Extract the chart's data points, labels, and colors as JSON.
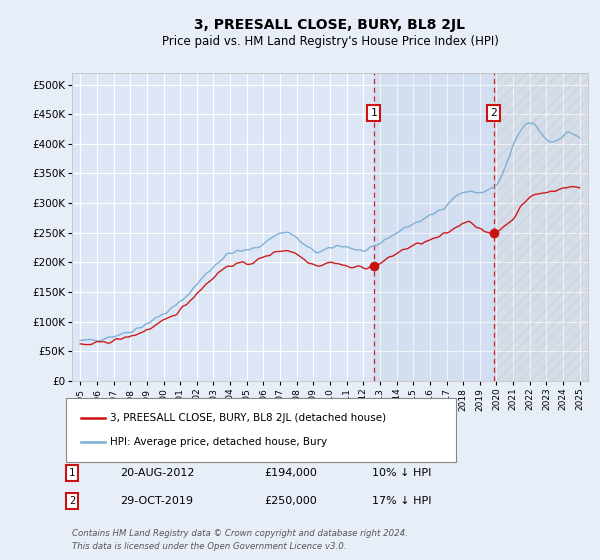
{
  "title": "3, PREESALL CLOSE, BURY, BL8 2JL",
  "subtitle": "Price paid vs. HM Land Registry's House Price Index (HPI)",
  "bg_color": "#e8eef8",
  "plot_bg_color": "#dde6f5",
  "grid_color": "#ffffff",
  "hpi_color": "#7aadd4",
  "price_color": "#cc1111",
  "marker1_date_x": 2012.63,
  "marker2_date_x": 2019.83,
  "marker1_price": 194000,
  "marker2_price": 250000,
  "marker1_label": "1",
  "marker2_label": "2",
  "marker1_text": "20-AUG-2012",
  "marker1_amount": "£194,000",
  "marker1_hpi": "10% ↓ HPI",
  "marker2_text": "29-OCT-2019",
  "marker2_amount": "£250,000",
  "marker2_hpi": "17% ↓ HPI",
  "legend_line1": "3, PREESALL CLOSE, BURY, BL8 2JL (detached house)",
  "legend_line2": "HPI: Average price, detached house, Bury",
  "footer": "Contains HM Land Registry data © Crown copyright and database right 2024.\nThis data is licensed under the Open Government Licence v3.0.",
  "ylim": [
    0,
    520000
  ],
  "xlim_start": 1994.5,
  "xlim_end": 2025.5,
  "yticks": [
    0,
    50000,
    100000,
    150000,
    200000,
    250000,
    300000,
    350000,
    400000,
    450000,
    500000
  ]
}
